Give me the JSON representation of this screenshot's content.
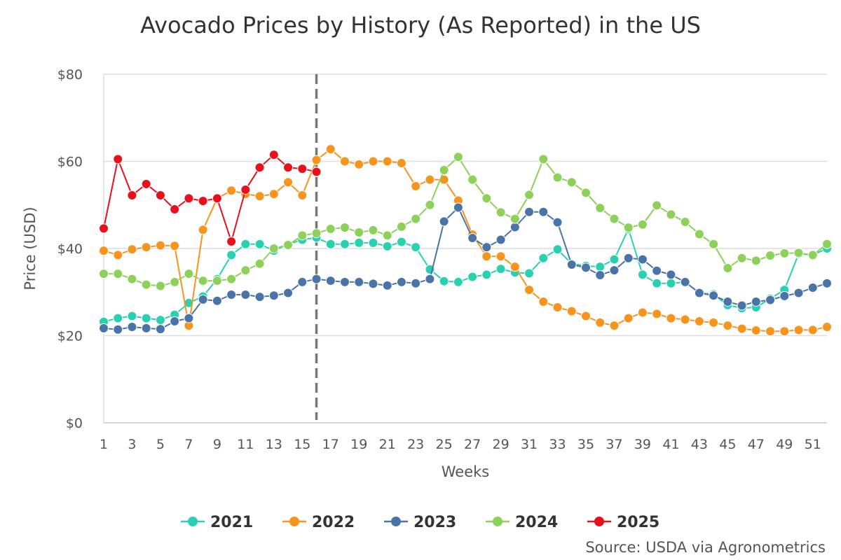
{
  "chart_data": {
    "type": "line",
    "title": "Avocado Prices by History (As Reported) in the US",
    "xlabel": "Weeks",
    "ylabel": "Price (USD)",
    "xlim": [
      1,
      52
    ],
    "ylim": [
      0,
      80
    ],
    "y_ticks": [
      0,
      20,
      40,
      60,
      80
    ],
    "y_tick_labels": [
      "$0",
      "$20",
      "$40",
      "$60",
      "$80"
    ],
    "x_ticks": [
      1,
      3,
      5,
      7,
      9,
      11,
      13,
      15,
      17,
      19,
      21,
      23,
      25,
      27,
      29,
      31,
      33,
      35,
      37,
      39,
      41,
      43,
      45,
      47,
      49,
      51
    ],
    "current_week_marker": 16,
    "legend_position": "bottom",
    "source": "Source: USDA via Agronometrics",
    "series": [
      {
        "name": "2021",
        "color": "#2ad1b0",
        "values": [
          23.2,
          24.0,
          24.5,
          24.0,
          23.6,
          24.8,
          27.5,
          29.0,
          33.0,
          38.5,
          41.0,
          41.0,
          39.5,
          41.0,
          42.0,
          42.5,
          41.0,
          41.0,
          41.3,
          41.3,
          40.5,
          41.5,
          40.3,
          35.2,
          32.5,
          32.3,
          33.5,
          34.0,
          35.3,
          34.5,
          34.3,
          37.8,
          39.8,
          36.5,
          36.0,
          35.8,
          37.5,
          44.5,
          34.0,
          32.0,
          32.0,
          32.3,
          29.8,
          29.5,
          27.0,
          26.3,
          26.5,
          28.5,
          30.5,
          38.8,
          38.5,
          40.0
        ]
      },
      {
        "name": "2022",
        "color": "#f7941d",
        "values": [
          39.5,
          38.5,
          39.8,
          40.3,
          40.7,
          40.6,
          22.3,
          44.3,
          51.5,
          53.3,
          52.5,
          52.0,
          52.5,
          55.2,
          52.2,
          60.3,
          62.8,
          60.0,
          59.3,
          60.0,
          60.0,
          59.6,
          54.3,
          55.8,
          55.8,
          51.0,
          43.2,
          38.2,
          38.2,
          35.8,
          30.5,
          27.8,
          26.5,
          25.6,
          24.5,
          23.0,
          22.3,
          24.0,
          25.3,
          25.0,
          24.0,
          23.7,
          23.3,
          23.0,
          22.3,
          21.6,
          21.2,
          21.0,
          21.0,
          21.3,
          21.3,
          22.0
        ]
      },
      {
        "name": "2023",
        "color": "#4a73a8",
        "values": [
          21.7,
          21.4,
          22.0,
          21.7,
          21.5,
          23.3,
          24.0,
          28.3,
          28.0,
          29.4,
          29.4,
          28.9,
          29.2,
          29.8,
          32.3,
          33.0,
          32.6,
          32.3,
          32.3,
          31.9,
          31.5,
          32.3,
          32.0,
          33.0,
          46.2,
          49.4,
          42.4,
          40.3,
          42.0,
          44.9,
          48.4,
          48.4,
          46.0,
          36.3,
          35.6,
          33.9,
          35.0,
          37.8,
          37.5,
          34.9,
          34.0,
          32.3,
          29.8,
          29.2,
          27.8,
          26.9,
          27.8,
          28.2,
          29.1,
          29.8,
          31.0,
          32.0
        ]
      },
      {
        "name": "2024",
        "color": "#8dd05a",
        "values": [
          34.2,
          34.2,
          33.0,
          31.7,
          31.4,
          32.3,
          34.2,
          32.6,
          32.6,
          33.0,
          35.0,
          36.5,
          40.0,
          40.8,
          43.0,
          43.5,
          44.5,
          44.8,
          43.7,
          44.2,
          43.0,
          45.0,
          46.8,
          50.0,
          58.0,
          61.0,
          55.8,
          51.5,
          48.3,
          46.8,
          52.3,
          60.5,
          56.3,
          55.2,
          52.8,
          49.3,
          46.8,
          44.8,
          45.5,
          49.9,
          47.8,
          46.1,
          43.3,
          41.0,
          35.5,
          37.8,
          37.2,
          38.4,
          38.9,
          39.0,
          38.5,
          41.0
        ]
      },
      {
        "name": "2025",
        "color": "#e8111b",
        "values": [
          44.6,
          60.5,
          52.2,
          54.8,
          52.2,
          49.0,
          51.5,
          50.9,
          51.5,
          41.6,
          53.5,
          58.6,
          61.5,
          58.6,
          58.3,
          57.6
        ]
      }
    ]
  }
}
